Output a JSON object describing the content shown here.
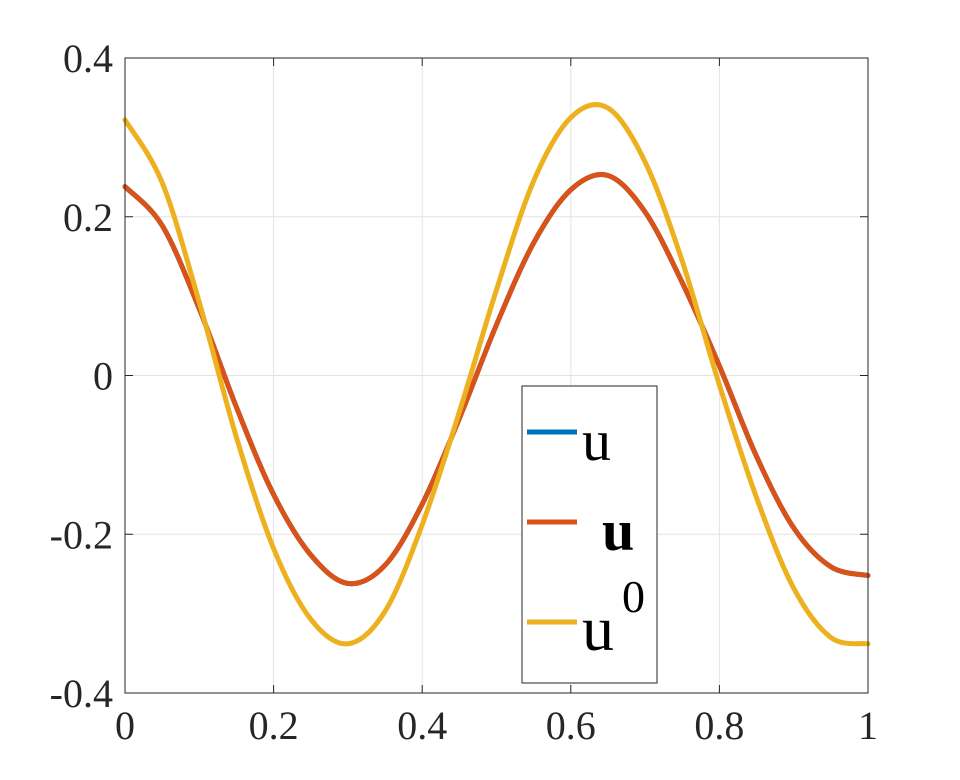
{
  "chart_data": {
    "type": "line",
    "xlim": [
      0,
      1
    ],
    "ylim": [
      -0.4,
      0.4
    ],
    "x_ticks": [
      0,
      0.2,
      0.4,
      0.6,
      0.8,
      1
    ],
    "x_tick_labels": [
      "0",
      "0.2",
      "0.4",
      "0.6",
      "0.8",
      "1"
    ],
    "y_ticks": [
      -0.4,
      -0.2,
      0,
      0.2,
      0.4
    ],
    "y_tick_labels": [
      "-0.4",
      "-0.2",
      "0",
      "0.2",
      "0.4"
    ],
    "grid": true,
    "legend_position": "bottom-center",
    "x": [
      0,
      0.05,
      0.1,
      0.15,
      0.2,
      0.25,
      0.3,
      0.35,
      0.4,
      0.45,
      0.5,
      0.55,
      0.6,
      0.65,
      0.7,
      0.75,
      0.8,
      0.85,
      0.9,
      0.95,
      1
    ],
    "series": [
      {
        "name": "u",
        "color": "#0072BD",
        "values": [
          0.238,
          0.189,
          0.084,
          -0.04,
          -0.15,
          -0.226,
          -0.262,
          -0.239,
          -0.162,
          -0.054,
          0.064,
          0.167,
          0.234,
          0.252,
          0.206,
          0.117,
          0.012,
          -0.102,
          -0.192,
          -0.241,
          -0.252
        ]
      },
      {
        "name": "u",
        "color": "#D95319",
        "values": [
          0.238,
          0.189,
          0.084,
          -0.04,
          -0.15,
          -0.226,
          -0.262,
          -0.239,
          -0.162,
          -0.054,
          0.064,
          0.167,
          0.234,
          0.252,
          0.206,
          0.117,
          0.012,
          -0.102,
          -0.192,
          -0.241,
          -0.252
        ]
      },
      {
        "name": "u",
        "superscript": "0",
        "color": "#EDB120",
        "values": [
          0.322,
          0.243,
          0.092,
          -0.078,
          -0.218,
          -0.307,
          -0.338,
          -0.297,
          -0.188,
          -0.046,
          0.108,
          0.245,
          0.325,
          0.337,
          0.269,
          0.144,
          -0.012,
          -0.154,
          -0.268,
          -0.33,
          -0.338
        ]
      }
    ]
  }
}
